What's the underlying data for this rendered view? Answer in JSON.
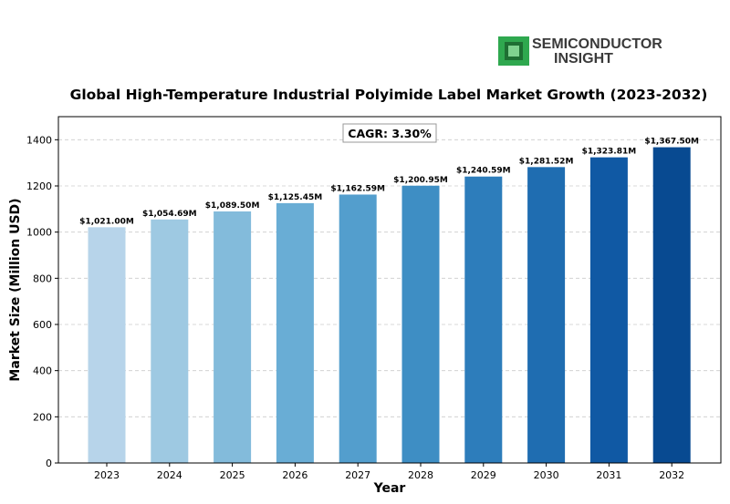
{
  "logo": {
    "line1": "SEMICONDUCTOR",
    "line2": "INSIGHT",
    "icon": "chip-icon",
    "colors": {
      "icon_green": "#2fa84f",
      "icon_dark": "#1e6f33",
      "text": "#3a3a3a"
    }
  },
  "chart_data": {
    "type": "bar",
    "title": "Global High-Temperature Industrial Polyimide Label Market Growth (2023-2032)",
    "xlabel": "Year",
    "ylabel": "Market Size (Million USD)",
    "categories": [
      "2023",
      "2024",
      "2025",
      "2026",
      "2027",
      "2028",
      "2029",
      "2030",
      "2031",
      "2032"
    ],
    "values": [
      1021.0,
      1054.69,
      1089.5,
      1125.45,
      1162.59,
      1200.95,
      1240.59,
      1281.52,
      1323.81,
      1367.5
    ],
    "data_labels": [
      "$1,021.00M",
      "$1,054.69M",
      "$1,089.50M",
      "$1,125.45M",
      "$1,162.59M",
      "$1,200.95M",
      "$1,240.59M",
      "$1,281.52M",
      "$1,323.81M",
      "$1,367.50M"
    ],
    "ylim": [
      0,
      1500
    ],
    "yticks": [
      0,
      200,
      400,
      600,
      800,
      1000,
      1200,
      1400
    ],
    "grid": "horizontal dashed",
    "annotation": "CAGR: 3.30%",
    "colors": [
      "#b7d4ea",
      "#9ec9e2",
      "#83bbdb",
      "#69add5",
      "#539ecd",
      "#3e8ec4",
      "#2d7dbb",
      "#1f6db1",
      "#1059a4",
      "#084a91"
    ]
  }
}
